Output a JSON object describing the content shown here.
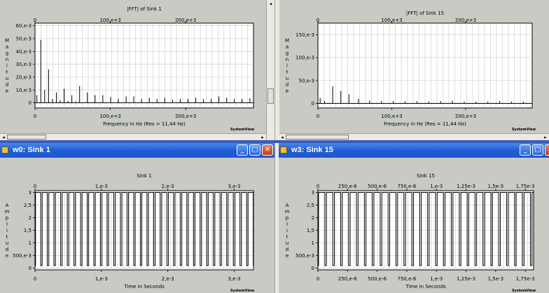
{
  "windows": {
    "w0": {
      "title": "w0: Sink 1"
    },
    "w3": {
      "title": "w3: Sink 15"
    },
    "buttons": {
      "minimize": "_",
      "maximize": "□",
      "close": "✕"
    }
  },
  "scroll": {
    "left": "◂",
    "right": "▸",
    "up": "▴",
    "down": "▾"
  },
  "logo_text": "SystemView",
  "chart_data": [
    {
      "type": "bar",
      "title": "|FFT| of Sink 1",
      "xlabel": "Frequency in Hz (Res = 11,44 Hz)",
      "ylabel": "Magnitude",
      "xlim": [
        0,
        290000
      ],
      "ylim": [
        -4000,
        62000
      ],
      "x_ticks": [
        0,
        100000,
        200000
      ],
      "x_tick_labels": [
        "0",
        "100,e+3",
        "200,e+3"
      ],
      "y_ticks": [
        0,
        10000,
        20000,
        30000,
        40000,
        50000,
        60000
      ],
      "y_tick_labels": [
        "0",
        "10,e-3",
        "20,e-3",
        "30,e-3",
        "40,e-3",
        "50,e-3",
        "60,e-3"
      ],
      "x": [
        2500,
        7700,
        12800,
        18000,
        23100,
        28300,
        33400,
        38600,
        43700,
        48900,
        54000,
        59200,
        69500,
        79700,
        90000,
        100300,
        110600,
        120900,
        131100,
        141400,
        151700,
        162000,
        172200,
        182500,
        192800,
        203000,
        213300,
        223600,
        233800,
        244100,
        254400,
        264600,
        274900,
        285200
      ],
      "values": [
        6000,
        49000,
        10000,
        26000,
        3000,
        8000,
        2000,
        11000,
        1500,
        6000,
        1000,
        13000,
        8000,
        6000,
        6000,
        4500,
        3000,
        5000,
        5000,
        3000,
        4000,
        3000,
        4000,
        2500,
        3000,
        3000,
        4000,
        3000,
        3000,
        5000,
        4000,
        3000,
        3000,
        3500
      ]
    },
    {
      "type": "bar",
      "title": "|FFT| of Sink 15",
      "xlabel": "Frequency in Hz (Res = 11,44 Hz)",
      "ylabel": "Magnitude",
      "xlim": [
        0,
        290000
      ],
      "ylim": [
        -10000,
        175000
      ],
      "x_ticks": [
        0,
        100000,
        200000
      ],
      "x_tick_labels": [
        "0",
        "100,e+3",
        "200,e+3"
      ],
      "y_ticks": [
        0,
        50000,
        100000,
        150000
      ],
      "y_tick_labels": [
        "0",
        "50,e-3",
        "100,e-3",
        "150,e-3"
      ],
      "x": [
        3000,
        9000,
        20000,
        31000,
        42000,
        55000,
        70000,
        86000,
        102000,
        118000,
        134000,
        150000,
        166000,
        182000,
        198000,
        214000,
        230000,
        246000,
        262000,
        278000
      ],
      "values": [
        12000,
        5000,
        37000,
        27000,
        20000,
        10000,
        6000,
        5000,
        5000,
        4500,
        5000,
        4000,
        5000,
        6000,
        4000,
        4000,
        4000,
        5000,
        4000,
        4000
      ]
    },
    {
      "type": "line",
      "title": "Sink 1",
      "xlabel": "Time in Seconds",
      "ylabel": "Amplitude",
      "xlim": [
        0,
        0.00329
      ],
      "ylim": [
        -0.07,
        3.07
      ],
      "x_ticks": [
        0,
        0.001,
        0.002,
        0.003
      ],
      "x_tick_labels": [
        "0",
        "1,e-3",
        "2,e-3",
        "3,e-3"
      ],
      "y_ticks": [
        0,
        0.5,
        1,
        1.5,
        2,
        2.5,
        3
      ],
      "y_tick_labels": [
        "0",
        "500,e-3",
        "1",
        "1,5",
        "2",
        "2,5",
        "3"
      ],
      "pulse_period": 0.0001,
      "pulse_duty": 0.78,
      "pulse_low": 0.1,
      "pulse_high": 3.0
    },
    {
      "type": "line",
      "title": "Sink 15",
      "xlabel": "Time in Seconds",
      "ylabel": "Amplitude",
      "xlim": [
        0,
        0.00182
      ],
      "ylim": [
        -0.07,
        3.07
      ],
      "x_ticks": [
        0,
        0.00025,
        0.0005,
        0.00075,
        0.001,
        0.00125,
        0.0015,
        0.00175
      ],
      "x_tick_labels": [
        "0",
        "250,e-6",
        "500,e-6",
        "750,e-6",
        "1,e-3",
        "1,25e-3",
        "1,5e-3",
        "1,75e-3"
      ],
      "y_ticks": [
        0,
        0.5,
        1,
        1.5,
        2,
        2.5,
        3
      ],
      "y_tick_labels": [
        "0",
        "500,e-3",
        "1",
        "1,5",
        "2",
        "2,5",
        "3"
      ],
      "pulse_period": 6.67e-05,
      "pulse_duty": 0.8,
      "pulse_low": 0.1,
      "pulse_high": 3.0
    }
  ]
}
